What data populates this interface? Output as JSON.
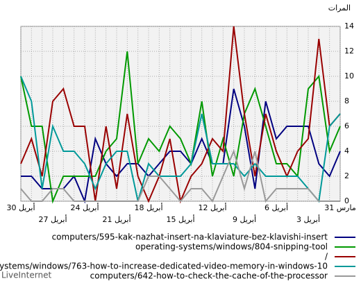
{
  "chart_data": {
    "type": "line",
    "y_label": "المرات",
    "categories": [
      "31 مارس",
      null,
      null,
      "3 أبريل",
      null,
      null,
      "6 أبريل",
      null,
      null,
      "9 أبريل",
      null,
      null,
      "12 أبريل",
      null,
      null,
      "15 أبريل",
      null,
      null,
      "18 أبريل",
      null,
      null,
      "21 أبريل",
      null,
      null,
      "24 أبريل",
      null,
      null,
      "27 أبريل",
      null,
      null,
      "30 أبريل"
    ],
    "ylim": [
      0,
      14
    ],
    "yticks": [
      0,
      2,
      4,
      6,
      8,
      10,
      12,
      14
    ],
    "grid": true,
    "series": [
      {
        "name": "computers/595-kak-nazhat-insert-na-klaviature-bez-klavishi-insert",
        "color": "#000080",
        "values": [
          4,
          2,
          3,
          6,
          6,
          6,
          5,
          8,
          1,
          6,
          9,
          3,
          3,
          5,
          3,
          4,
          4,
          3,
          2,
          3,
          3,
          2,
          3,
          5,
          0,
          2,
          1,
          1,
          1,
          2,
          2
        ]
      },
      {
        "name": "operating-systems/windows/804-snipping-tool",
        "color": "#009900",
        "values": [
          6,
          4,
          10,
          9,
          2,
          3,
          3,
          6,
          9,
          7,
          2,
          5,
          2,
          8,
          3,
          5,
          6,
          4,
          5,
          3,
          12,
          5,
          4,
          2,
          2,
          2,
          2,
          0,
          6,
          6,
          10
        ]
      },
      {
        "name": "/",
        "color": "#990000",
        "values": [
          7,
          6,
          13,
          5,
          4,
          2,
          4,
          7,
          2,
          7,
          14,
          4,
          5,
          3,
          2,
          0,
          5,
          2,
          0,
          2,
          7,
          1,
          6,
          0,
          6,
          6,
          9,
          8,
          2,
          5,
          3
        ]
      },
      {
        "name": "-systems/windows/763-how-to-increase-dedicated-video-memory-in-windows-10",
        "color": "#009999",
        "values": [
          7,
          6,
          0,
          1,
          2,
          2,
          2,
          2,
          3,
          2,
          3,
          3,
          3,
          7,
          3,
          2,
          2,
          2,
          3,
          0,
          4,
          4,
          3,
          1,
          3,
          4,
          4,
          6,
          1,
          8,
          10
        ]
      },
      {
        "name": "computers/642-how-to-check-the-cache-of-the-processor",
        "color": "#999999",
        "values": [
          0,
          0,
          0,
          1,
          1,
          1,
          1,
          0,
          4,
          1,
          4,
          2,
          0,
          1,
          1,
          0,
          1,
          2,
          2,
          0,
          0,
          0,
          0,
          0,
          0,
          0,
          1,
          1,
          0,
          0,
          1
        ]
      }
    ],
    "footer": "LiveInternet"
  }
}
